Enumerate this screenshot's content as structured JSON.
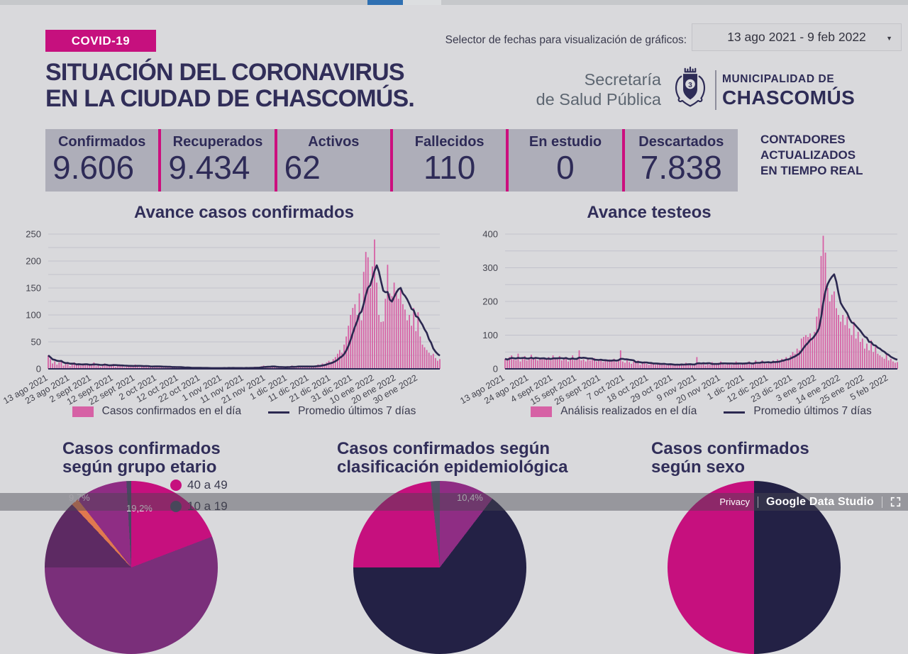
{
  "colors": {
    "magenta": "#c6107e",
    "navy_text": "#312e59",
    "bar_pink": "#d661a5",
    "line_navy": "#2b2850",
    "counters_bg": "#aeaeb9",
    "page_bg": "#d9d9dc",
    "footer_overlay": "rgba(72,72,80,0.45)"
  },
  "header": {
    "badge": "COVID-19",
    "title_line1": "SITUACIÓN DEL CORONAVIRUS",
    "title_line2": "EN LA CIUDAD DE CHASCOMÚS.",
    "date_selector_label": "Selector de fechas para visualización de gráficos:",
    "date_range": "13 ago 2021 - 9 feb 2022",
    "org_line1": "Secretaría",
    "org_line2": "de Salud Pública",
    "muni_line1": "MUNICIPALIDAD DE",
    "muni_line2": "CHASCOMÚS"
  },
  "counters": {
    "items": [
      {
        "label": "Confirmados",
        "value": "9.606"
      },
      {
        "label": "Recuperados",
        "value": "9.434"
      },
      {
        "label": "Activos",
        "value": "62"
      },
      {
        "label": "Fallecidos",
        "value": "110"
      },
      {
        "label": "En estudio",
        "value": "0"
      },
      {
        "label": "Descartados",
        "value": "7.838"
      }
    ],
    "note_line1": "CONTADORES",
    "note_line2": "ACTUALIZADOS",
    "note_line3": "EN TIEMPO REAL"
  },
  "chart_data": [
    {
      "type": "bar",
      "title": "Avance casos confirmados",
      "x_start": "13 ago 2021",
      "x_end": "9 feb 2022",
      "x_tick_every": 10,
      "x_tick_labels": [
        "13 ago 2021",
        "23 ago 2021",
        "2 sept 2021",
        "12 sept 2021",
        "22 sept 2021",
        "2 oct 2021",
        "12 oct 2021",
        "22 oct 2021",
        "1 nov 2021",
        "11 nov 2021",
        "21 nov 2021",
        "1 dic 2021",
        "11 dic 2021",
        "21 dic 2021",
        "31 dic 2021",
        "10 ene 2022",
        "20 ene 2022",
        "30 ene 2022"
      ],
      "ylim": [
        0,
        250
      ],
      "y_ticks": [
        0,
        50,
        100,
        150,
        200,
        250
      ],
      "y_minor_step": 25,
      "series": [
        {
          "name": "Casos confirmados en el día",
          "type": "bar",
          "color": "#d661a5",
          "values": [
            25,
            18,
            10,
            14,
            8,
            12,
            16,
            6,
            9,
            11,
            5,
            8,
            12,
            7,
            9,
            6,
            10,
            7,
            8,
            6,
            9,
            12,
            5,
            7,
            4,
            8,
            10,
            6,
            5,
            7,
            9,
            4,
            6,
            8,
            5,
            3,
            6,
            7,
            4,
            5,
            8,
            6,
            3,
            5,
            4,
            6,
            3,
            4,
            5,
            4,
            6,
            3,
            5,
            2,
            4,
            3,
            5,
            2,
            3,
            4,
            2,
            3,
            1,
            2,
            3,
            2,
            1,
            2,
            3,
            1,
            2,
            1,
            2,
            1,
            1,
            2,
            1,
            2,
            1,
            2,
            1,
            2,
            1,
            3,
            1,
            2,
            1,
            1,
            2,
            1,
            2,
            3,
            1,
            2,
            1,
            4,
            2,
            3,
            5,
            6,
            4,
            3,
            5,
            4,
            3,
            2,
            4,
            3,
            2,
            3,
            5,
            4,
            6,
            3,
            5,
            4,
            3,
            5,
            4,
            6,
            3,
            5,
            4,
            6,
            8,
            7,
            10,
            9,
            12,
            15,
            13,
            18,
            22,
            28,
            35,
            30,
            45,
            60,
            80,
            100,
            113,
            120,
            100,
            140,
            90,
            180,
            217,
            207,
            150,
            190,
            240,
            160,
            100,
            87,
            88,
            130,
            193,
            140,
            135,
            160,
            145,
            130,
            148,
            120,
            110,
            90,
            100,
            80,
            113,
            70,
            105,
            60,
            45,
            40,
            35,
            30,
            25,
            28,
            20,
            15,
            18
          ]
        },
        {
          "name": "Promedio últimos 7 días",
          "type": "line",
          "color": "#2b2850",
          "derived": "trailing_7_day_average"
        }
      ]
    },
    {
      "type": "bar",
      "title": "Avance testeos",
      "x_start": "13 ago 2021",
      "x_end": "9 feb 2022",
      "x_tick_every": 11,
      "x_tick_labels": [
        "13 ago 2021",
        "24 ago 2021",
        "4 sept 2021",
        "15 sept 2021",
        "26 sept 2021",
        "7 oct 2021",
        "18 oct 2021",
        "29 oct 2021",
        "9 nov 2021",
        "20 nov 2021",
        "1 dic 2021",
        "12 dic 2021",
        "23 dic 2021",
        "3 ene 2022",
        "14 ene 2022",
        "25 ene 2022",
        "5 feb 2022"
      ],
      "ylim": [
        0,
        400
      ],
      "y_ticks": [
        0,
        100,
        200,
        300,
        400
      ],
      "y_minor_step": 50,
      "series": [
        {
          "name": "Análisis realizados en el día",
          "type": "bar",
          "color": "#d661a5",
          "values": [
            30,
            25,
            35,
            40,
            28,
            26,
            45,
            22,
            30,
            38,
            25,
            30,
            42,
            28,
            35,
            25,
            30,
            28,
            32,
            28,
            35,
            25,
            40,
            30,
            28,
            38,
            25,
            30,
            35,
            22,
            28,
            40,
            25,
            30,
            55,
            25,
            28,
            22,
            30,
            25,
            28,
            32,
            22,
            25,
            28,
            20,
            25,
            22,
            28,
            25,
            30,
            20,
            28,
            55,
            22,
            18,
            25,
            20,
            15,
            22,
            18,
            25,
            12,
            18,
            22,
            15,
            12,
            18,
            15,
            12,
            15,
            18,
            12,
            15,
            10,
            12,
            15,
            10,
            12,
            15,
            12,
            15,
            10,
            18,
            12,
            15,
            10,
            12,
            35,
            15,
            12,
            18,
            10,
            15,
            12,
            20,
            15,
            12,
            18,
            22,
            15,
            12,
            18,
            15,
            12,
            15,
            22,
            18,
            12,
            15,
            18,
            15,
            22,
            12,
            18,
            25,
            15,
            20,
            25,
            18,
            15,
            20,
            18,
            25,
            20,
            28,
            25,
            30,
            28,
            35,
            30,
            40,
            50,
            45,
            60,
            55,
            90,
            95,
            100,
            95,
            105,
            90,
            110,
            155,
            180,
            335,
            395,
            345,
            240,
            200,
            220,
            230,
            180,
            160,
            140,
            160,
            130,
            155,
            120,
            100,
            140,
            90,
            110,
            80,
            90,
            60,
            75,
            55,
            85,
            50,
            70,
            45,
            40,
            35,
            30,
            45,
            25,
            30,
            22,
            18,
            20
          ]
        },
        {
          "name": "Promedio últimos 7 días",
          "type": "line",
          "color": "#2b2850",
          "derived": "trailing_7_day_average"
        }
      ]
    },
    {
      "type": "pie",
      "title": "Casos confirmados según grupo etario",
      "slices": [
        {
          "label": "19,2%",
          "pct": 19.2,
          "color": "#c6107e"
        },
        {
          "label": "",
          "pct": 55.8,
          "color": "#7a2f7a"
        },
        {
          "label": "",
          "pct": 13.0,
          "color": "#5d2a63"
        },
        {
          "label": "",
          "pct": 1.4,
          "color": "#e0794f"
        },
        {
          "label": "9,7%",
          "pct": 9.7,
          "color": "#8f2d84"
        },
        {
          "label": "",
          "pct": 0.9,
          "color": "#4a4763"
        }
      ],
      "legend": [
        {
          "label": "40 a 49",
          "color": "#c6107e"
        },
        {
          "label": "10 a 19",
          "color": "#4a4763"
        }
      ]
    },
    {
      "type": "pie",
      "title": "Casos confirmados según clasificación epidemiológica",
      "slices": [
        {
          "label": "10,4%",
          "pct": 10.4,
          "color": "#8f2d84"
        },
        {
          "label": "",
          "pct": 64.6,
          "color": "#232145"
        },
        {
          "label": "",
          "pct": 23.3,
          "color": "#c6107e"
        },
        {
          "label": "",
          "pct": 1.7,
          "color": "#55526b"
        }
      ]
    },
    {
      "type": "pie",
      "title": "Casos confirmados según sexo",
      "slices": [
        {
          "label": "",
          "pct": 50,
          "color": "#232145"
        },
        {
          "label": "",
          "pct": 50,
          "color": "#c6107e"
        }
      ]
    }
  ],
  "bottom_titles": {
    "t1_line1": "Casos confirmados",
    "t1_line2": "según grupo etario",
    "t2_line1": "Casos confirmados según",
    "t2_line2": "clasificación epidemiológica",
    "t3_line1": "Casos confirmados",
    "t3_line2": "según sexo"
  },
  "footer": {
    "privacy": "Privacy",
    "brand": "Google Data Studio"
  }
}
